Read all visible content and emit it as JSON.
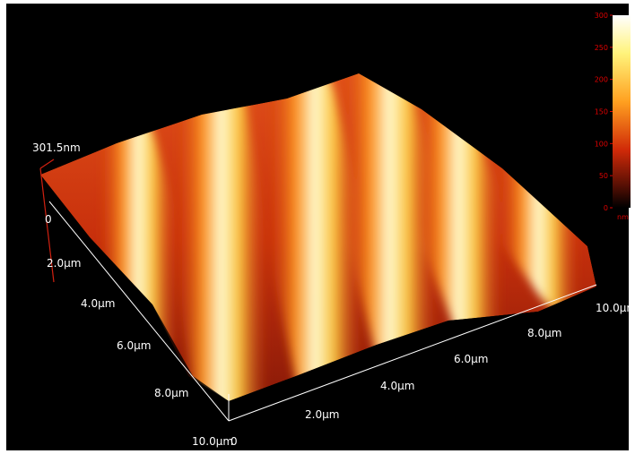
{
  "z_axis": {
    "max_label": "301.5nm",
    "zero_label": "0"
  },
  "left_axis": {
    "labels": [
      "2.0µm",
      "4.0µm",
      "6.0µm",
      "8.0µm",
      "10.0µm"
    ]
  },
  "right_axis": {
    "origin_label": "0",
    "labels": [
      "2.0µm",
      "4.0µm",
      "6.0µm",
      "8.0µm",
      "10.0µm"
    ]
  },
  "colorbar": {
    "ticks": [
      "300",
      "250",
      "200",
      "150",
      "100",
      "50",
      "0"
    ],
    "unit": "nm"
  }
}
